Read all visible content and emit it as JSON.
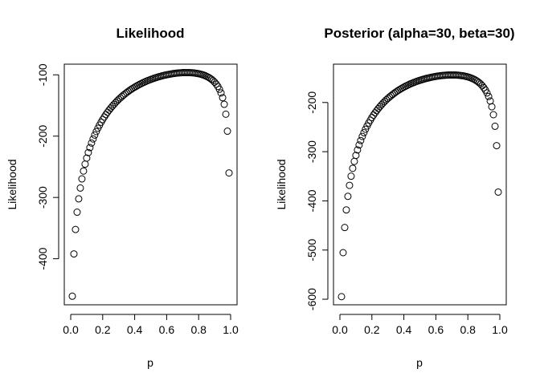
{
  "chart_data": [
    {
      "type": "scatter",
      "title": "Likelihood",
      "xlabel": "p",
      "ylabel": "Likelihood",
      "xlim": [
        0.0,
        1.0
      ],
      "ylim": [
        -462,
        -97
      ],
      "xticks": [
        "0.0",
        "0.2",
        "0.4",
        "0.6",
        "0.8",
        "1.0"
      ],
      "yticks": [
        "-400",
        "-300",
        "-200",
        "-100"
      ],
      "x": [
        0.01,
        0.02,
        0.03,
        0.04,
        0.05,
        0.06,
        0.07,
        0.08,
        0.09,
        0.1,
        0.11,
        0.12,
        0.13,
        0.14,
        0.15,
        0.16,
        0.17,
        0.18,
        0.19,
        0.2,
        0.21,
        0.22,
        0.23,
        0.24,
        0.25,
        0.26,
        0.27,
        0.28,
        0.29,
        0.3,
        0.31,
        0.32,
        0.33,
        0.34,
        0.35,
        0.36,
        0.37,
        0.38,
        0.39,
        0.4,
        0.41,
        0.42,
        0.43,
        0.44,
        0.45,
        0.46,
        0.47,
        0.48,
        0.49,
        0.5,
        0.51,
        0.52,
        0.53,
        0.54,
        0.55,
        0.56,
        0.57,
        0.58,
        0.59,
        0.6,
        0.61,
        0.62,
        0.63,
        0.64,
        0.65,
        0.66,
        0.67,
        0.68,
        0.69,
        0.7,
        0.71,
        0.72,
        0.73,
        0.74,
        0.75,
        0.76,
        0.77,
        0.78,
        0.79,
        0.8,
        0.81,
        0.82,
        0.83,
        0.84,
        0.85,
        0.86,
        0.87,
        0.88,
        0.89,
        0.9,
        0.91,
        0.92,
        0.93,
        0.94,
        0.95,
        0.96,
        0.97,
        0.98,
        0.99
      ],
      "y": [
        -461.1,
        -392.1,
        -352.2,
        -324.0,
        -302.3,
        -284.6,
        -269.7,
        -256.9,
        -245.7,
        -235.8,
        -226.8,
        -218.7,
        -211.3,
        -204.6,
        -198.3,
        -192.5,
        -187.1,
        -182.1,
        -177.3,
        -172.9,
        -168.8,
        -164.8,
        -161.1,
        -157.6,
        -154.3,
        -151.2,
        -148.2,
        -145.4,
        -142.7,
        -140.1,
        -137.7,
        -135.3,
        -133.1,
        -131.0,
        -128.9,
        -127.0,
        -125.1,
        -123.4,
        -121.7,
        -120.1,
        -118.6,
        -117.1,
        -115.7,
        -114.4,
        -113.1,
        -111.9,
        -110.7,
        -109.6,
        -108.6,
        -107.6,
        -106.6,
        -105.7,
        -104.8,
        -104.0,
        -103.2,
        -102.5,
        -101.8,
        -101.1,
        -100.5,
        -99.9,
        -99.4,
        -98.9,
        -98.4,
        -98.0,
        -97.6,
        -97.3,
        -97.0,
        -96.8,
        -96.6,
        -96.4,
        -96.3,
        -96.3,
        -96.3,
        -96.4,
        -96.5,
        -96.7,
        -96.9,
        -97.3,
        -97.7,
        -98.2,
        -98.8,
        -99.5,
        -100.3,
        -101.3,
        -102.5,
        -103.8,
        -105.4,
        -107.2,
        -109.4,
        -112.0,
        -115.1,
        -118.9,
        -123.5,
        -129.5,
        -137.3,
        -148.1,
        -164.2,
        -191.9,
        -260.0
      ]
    },
    {
      "type": "scatter",
      "title": "Posterior (alpha=30, beta=30)",
      "xlabel": "p",
      "ylabel": "Likelihood",
      "xlim": [
        0.0,
        1.0
      ],
      "ylim": [
        -595,
        -140
      ],
      "xticks": [
        "0.0",
        "0.2",
        "0.4",
        "0.6",
        "0.8",
        "1.0"
      ],
      "yticks": [
        "-600",
        "-500",
        "-400",
        "-300",
        "-200"
      ],
      "x": [
        0.01,
        0.02,
        0.03,
        0.04,
        0.05,
        0.06,
        0.07,
        0.08,
        0.09,
        0.1,
        0.11,
        0.12,
        0.13,
        0.14,
        0.15,
        0.16,
        0.17,
        0.18,
        0.19,
        0.2,
        0.21,
        0.22,
        0.23,
        0.24,
        0.25,
        0.26,
        0.27,
        0.28,
        0.29,
        0.3,
        0.31,
        0.32,
        0.33,
        0.34,
        0.35,
        0.36,
        0.37,
        0.38,
        0.39,
        0.4,
        0.41,
        0.42,
        0.43,
        0.44,
        0.45,
        0.46,
        0.47,
        0.48,
        0.49,
        0.5,
        0.51,
        0.52,
        0.53,
        0.54,
        0.55,
        0.56,
        0.57,
        0.58,
        0.59,
        0.6,
        0.61,
        0.62,
        0.63,
        0.64,
        0.65,
        0.66,
        0.67,
        0.68,
        0.69,
        0.7,
        0.71,
        0.72,
        0.73,
        0.74,
        0.75,
        0.76,
        0.77,
        0.78,
        0.79,
        0.8,
        0.81,
        0.82,
        0.83,
        0.84,
        0.85,
        0.86,
        0.87,
        0.88,
        0.89,
        0.9,
        0.91,
        0.92,
        0.93,
        0.94,
        0.95,
        0.96,
        0.97,
        0.98,
        0.99
      ],
      "y": [
        -594.8,
        -505.3,
        -454.2,
        -418.4,
        -390.8,
        -368.5,
        -349.8,
        -333.8,
        -319.8,
        -307.5,
        -296.4,
        -286.4,
        -277.3,
        -269.0,
        -261.4,
        -254.3,
        -247.8,
        -241.7,
        -236.0,
        -230.6,
        -225.6,
        -220.9,
        -216.5,
        -212.3,
        -208.4,
        -204.7,
        -201.1,
        -197.8,
        -194.6,
        -191.6,
        -188.8,
        -186.1,
        -183.5,
        -181.1,
        -178.7,
        -176.5,
        -174.4,
        -172.4,
        -170.5,
        -168.7,
        -167.0,
        -165.4,
        -163.8,
        -162.3,
        -160.9,
        -159.6,
        -158.3,
        -157.1,
        -156.0,
        -154.9,
        -153.9,
        -152.9,
        -152.0,
        -151.1,
        -150.3,
        -149.5,
        -148.8,
        -148.1,
        -147.5,
        -146.9,
        -146.4,
        -145.9,
        -145.5,
        -145.1,
        -144.8,
        -144.5,
        -144.3,
        -144.1,
        -144.0,
        -144.0,
        -144.0,
        -144.1,
        -144.2,
        -144.5,
        -144.8,
        -145.2,
        -145.7,
        -146.3,
        -147.1,
        -147.9,
        -148.9,
        -150.1,
        -151.5,
        -153.0,
        -154.9,
        -157.0,
        -159.5,
        -162.4,
        -165.8,
        -169.9,
        -174.7,
        -180.6,
        -187.8,
        -196.9,
        -208.7,
        -224.8,
        -248.3,
        -287.7,
        -382.1
      ]
    }
  ]
}
